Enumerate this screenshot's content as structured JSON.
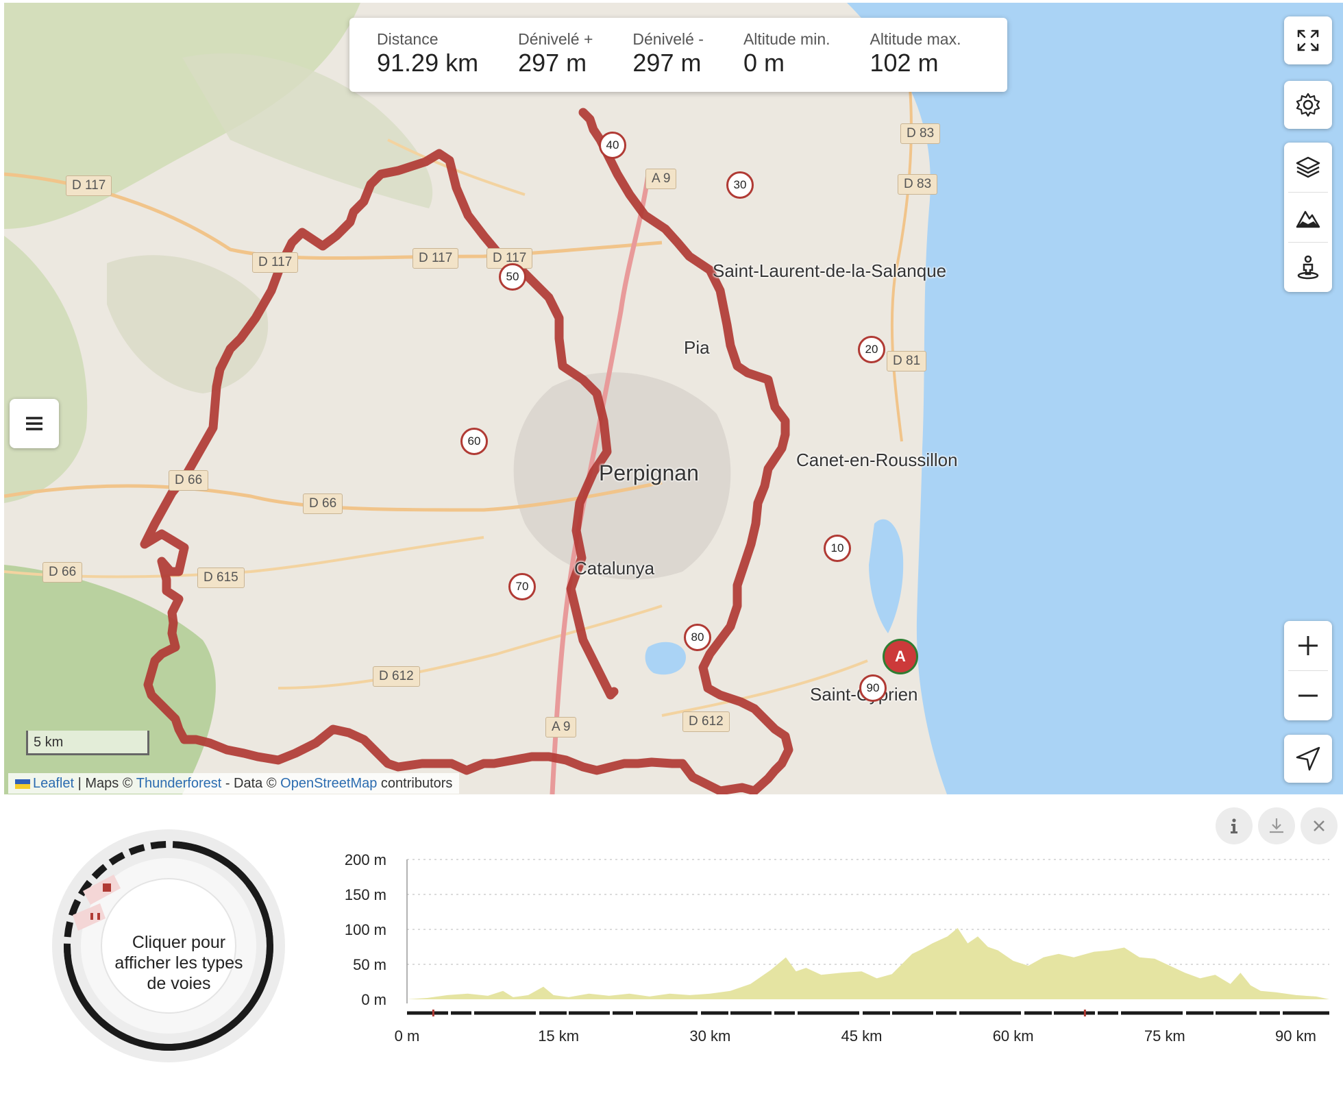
{
  "stats": {
    "distance": {
      "label": "Distance",
      "value": "91.29 km"
    },
    "gain": {
      "label": "Dénivelé +",
      "value": "297 m"
    },
    "loss": {
      "label": "Dénivelé -",
      "value": "297 m"
    },
    "alt_min": {
      "label": "Altitude min.",
      "value": "0 m"
    },
    "alt_max": {
      "label": "Altitude max.",
      "value": "102 m"
    }
  },
  "map": {
    "places": [
      {
        "name": "Saint-Laurent-de-la-Salanque"
      },
      {
        "name": "Pia"
      },
      {
        "name": "Perpignan"
      },
      {
        "name": "Canet-en-Roussillon"
      },
      {
        "name": "Catalunya"
      },
      {
        "name": "Saint-Cyprien"
      }
    ],
    "roads": [
      "D 117",
      "D 117",
      "D 117",
      "D 117",
      "A 9",
      "D 83",
      "D 83",
      "D 81",
      "D 66",
      "D 66",
      "D 66",
      "D 615",
      "D 612",
      "D 612",
      "A 9"
    ],
    "km_markers": [
      "10",
      "20",
      "30",
      "40",
      "50",
      "60",
      "70",
      "80",
      "90"
    ],
    "start_marker": "A",
    "scale": "5 km",
    "attribution": {
      "leaflet": "Leaflet",
      "maps": " | Maps © ",
      "thunderforest": "Thunderforest",
      "data": " - Data © ",
      "osm": "OpenStreetMap",
      "contributors": " contributors"
    },
    "controls": [
      "fullscreen-icon",
      "gear-icon",
      "layers-icon",
      "mountain-icon",
      "street-view-icon",
      "zoom-in-icon",
      "zoom-out-icon",
      "locate-icon",
      "menu-icon"
    ],
    "colors": {
      "route": "#b03a34",
      "sea": "#aad3f5",
      "land": "#ece8e0",
      "start": "#cc3a3a"
    }
  },
  "profile": {
    "donut_text": "Cliquer pour afficher les types de voies",
    "buttons": [
      "info-icon",
      "download-icon",
      "close-icon"
    ],
    "chart_data": {
      "type": "area",
      "xlabel": "",
      "ylabel": "",
      "x_ticks": [
        "0 m",
        "15 km",
        "30 km",
        "45 km",
        "60 km",
        "75 km",
        "90 km"
      ],
      "y_ticks": [
        "200 m",
        "150 m",
        "100 m",
        "50 m",
        "0 m"
      ],
      "xlim": [
        0,
        91.29
      ],
      "ylim": [
        0,
        200
      ],
      "color": "#e5e4a2",
      "x": [
        0,
        2,
        4,
        6,
        8,
        9.5,
        10.5,
        12,
        13.5,
        14.5,
        16,
        18,
        20,
        22,
        24,
        26,
        28,
        30,
        32,
        34,
        36,
        37.5,
        38.5,
        39.5,
        41,
        43,
        45,
        46.5,
        48,
        50,
        51,
        52,
        53.5,
        54.5,
        55.5,
        56.5,
        57.5,
        58.5,
        60,
        61.5,
        63,
        64.5,
        66,
        68,
        69.5,
        71,
        72.5,
        74,
        75.5,
        77,
        78.5,
        80,
        81.5,
        82.5,
        83.5,
        84.5,
        86,
        88,
        90,
        91.29
      ],
      "y": [
        0,
        2,
        6,
        8,
        5,
        12,
        3,
        6,
        18,
        6,
        3,
        8,
        5,
        8,
        4,
        8,
        6,
        8,
        12,
        22,
        42,
        60,
        40,
        45,
        35,
        38,
        40,
        30,
        36,
        65,
        72,
        80,
        90,
        102,
        80,
        90,
        75,
        70,
        55,
        48,
        60,
        65,
        60,
        68,
        70,
        74,
        60,
        58,
        48,
        38,
        30,
        35,
        22,
        38,
        20,
        12,
        10,
        6,
        4,
        0
      ]
    }
  }
}
